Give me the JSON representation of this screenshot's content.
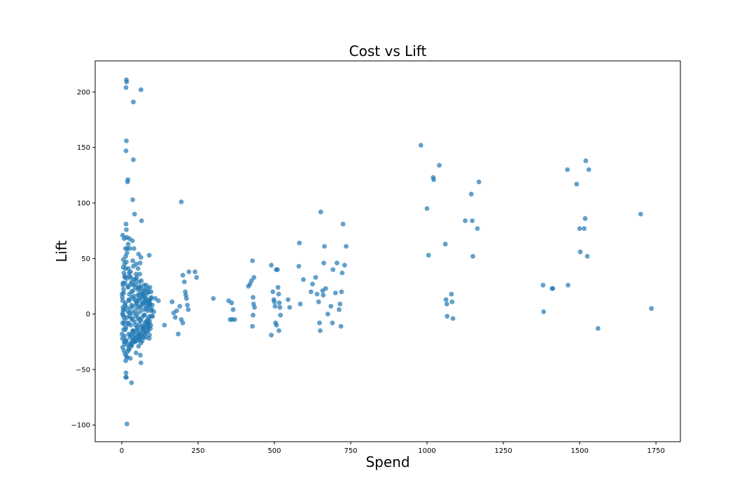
{
  "chart_data": {
    "type": "scatter",
    "title": "Cost vs Lift",
    "xlabel": "Spend",
    "ylabel": "Lift",
    "xlim": [
      -87,
      1830
    ],
    "ylim": [
      -115,
      228
    ],
    "xticks": [
      0,
      250,
      500,
      750,
      1000,
      1250,
      1500,
      1750
    ],
    "yticks": [
      -100,
      -50,
      0,
      50,
      100,
      150,
      200
    ],
    "ytick_labels": [
      "−100",
      "−50",
      "0",
      "50",
      "100",
      "150",
      "200"
    ],
    "grid": false,
    "color": "#1f77b4",
    "points": [
      [
        15,
        211
      ],
      [
        16,
        209
      ],
      [
        14,
        204
      ],
      [
        63,
        202
      ],
      [
        38,
        191
      ],
      [
        15,
        156
      ],
      [
        14,
        147
      ],
      [
        20,
        121
      ],
      [
        19,
        119
      ],
      [
        38,
        139
      ],
      [
        36,
        103
      ],
      [
        42,
        90
      ],
      [
        14,
        81
      ],
      [
        15,
        76
      ],
      [
        65,
        84
      ],
      [
        3,
        71
      ],
      [
        8,
        68
      ],
      [
        16,
        69
      ],
      [
        25,
        68
      ],
      [
        26,
        59
      ],
      [
        35,
        66
      ],
      [
        12,
        59
      ],
      [
        18,
        59
      ],
      [
        40,
        59
      ],
      [
        55,
        54
      ],
      [
        63,
        51
      ],
      [
        90,
        53
      ],
      [
        5,
        49
      ],
      [
        15,
        47
      ],
      [
        36,
        48
      ],
      [
        47,
        45
      ],
      [
        60,
        46
      ],
      [
        13,
        41
      ],
      [
        22,
        41
      ],
      [
        38,
        43
      ],
      [
        53,
        41
      ],
      [
        7,
        37
      ],
      [
        24,
        37
      ],
      [
        47,
        36
      ],
      [
        59,
        36
      ],
      [
        10,
        33
      ],
      [
        30,
        33
      ],
      [
        45,
        31
      ],
      [
        64,
        30
      ],
      [
        80,
        26
      ],
      [
        92,
        24
      ],
      [
        4,
        26
      ],
      [
        20,
        25
      ],
      [
        55,
        24
      ],
      [
        73,
        22
      ],
      [
        88,
        20
      ],
      [
        6,
        19
      ],
      [
        32,
        20
      ],
      [
        57,
        18
      ],
      [
        78,
        16
      ],
      [
        95,
        14
      ],
      [
        2,
        15
      ],
      [
        23,
        13
      ],
      [
        48,
        12
      ],
      [
        70,
        11
      ],
      [
        92,
        9
      ],
      [
        10,
        8
      ],
      [
        37,
        7
      ],
      [
        59,
        6
      ],
      [
        81,
        5
      ],
      [
        96,
        3
      ],
      [
        4,
        3
      ],
      [
        26,
        1
      ],
      [
        50,
        0
      ],
      [
        74,
        -1
      ],
      [
        91,
        -2
      ],
      [
        7,
        -3
      ],
      [
        33,
        -4
      ],
      [
        58,
        -5
      ],
      [
        83,
        -6
      ],
      [
        3,
        -8
      ],
      [
        21,
        -9
      ],
      [
        46,
        -10
      ],
      [
        69,
        -11
      ],
      [
        88,
        -12
      ],
      [
        12,
        -14
      ],
      [
        36,
        -15
      ],
      [
        60,
        -16
      ],
      [
        79,
        -17
      ],
      [
        1,
        -18
      ],
      [
        29,
        -19
      ],
      [
        54,
        -20
      ],
      [
        72,
        -21
      ],
      [
        90,
        -22
      ],
      [
        15,
        -24
      ],
      [
        42,
        -25
      ],
      [
        63,
        -26
      ],
      [
        9,
        -27
      ],
      [
        33,
        -28
      ],
      [
        55,
        -29
      ],
      [
        24,
        -32
      ],
      [
        47,
        -35
      ],
      [
        61,
        -37
      ],
      [
        18,
        -39
      ],
      [
        28,
        -40
      ],
      [
        13,
        -42
      ],
      [
        63,
        -44
      ],
      [
        14,
        -53
      ],
      [
        15,
        -57
      ],
      [
        13,
        -57
      ],
      [
        32,
        -62
      ],
      [
        17,
        -99
      ],
      [
        100,
        8
      ],
      [
        105,
        2
      ],
      [
        110,
        14
      ],
      [
        120,
        12
      ],
      [
        140,
        -10
      ],
      [
        165,
        11
      ],
      [
        170,
        1
      ],
      [
        175,
        -3
      ],
      [
        180,
        3
      ],
      [
        190,
        7
      ],
      [
        195,
        -5
      ],
      [
        200,
        -8
      ],
      [
        185,
        -18
      ],
      [
        195,
        101
      ],
      [
        200,
        35
      ],
      [
        205,
        29
      ],
      [
        208,
        20
      ],
      [
        210,
        17
      ],
      [
        212,
        14
      ],
      [
        215,
        8
      ],
      [
        218,
        4
      ],
      [
        220,
        38
      ],
      [
        240,
        38
      ],
      [
        245,
        33
      ],
      [
        300,
        14
      ],
      [
        350,
        12
      ],
      [
        360,
        10
      ],
      [
        365,
        4
      ],
      [
        355,
        -5
      ],
      [
        362,
        -5
      ],
      [
        370,
        -5
      ],
      [
        415,
        25
      ],
      [
        420,
        27
      ],
      [
        425,
        30
      ],
      [
        428,
        48
      ],
      [
        430,
        15
      ],
      [
        432,
        9
      ],
      [
        435,
        6
      ],
      [
        430,
        -1
      ],
      [
        428,
        -11
      ],
      [
        433,
        33
      ],
      [
        490,
        44
      ],
      [
        495,
        20
      ],
      [
        498,
        13
      ],
      [
        500,
        11
      ],
      [
        502,
        7
      ],
      [
        504,
        -8
      ],
      [
        507,
        -10
      ],
      [
        506,
        40
      ],
      [
        510,
        40
      ],
      [
        512,
        24
      ],
      [
        514,
        18
      ],
      [
        516,
        10
      ],
      [
        518,
        6
      ],
      [
        520,
        -1
      ],
      [
        515,
        -15
      ],
      [
        490,
        -19
      ],
      [
        545,
        13
      ],
      [
        550,
        6
      ],
      [
        580,
        43
      ],
      [
        582,
        64
      ],
      [
        585,
        9
      ],
      [
        595,
        31
      ],
      [
        620,
        20
      ],
      [
        625,
        27
      ],
      [
        635,
        33
      ],
      [
        640,
        18
      ],
      [
        645,
        11
      ],
      [
        648,
        -8
      ],
      [
        650,
        -15
      ],
      [
        652,
        92
      ],
      [
        658,
        21
      ],
      [
        660,
        17
      ],
      [
        662,
        46
      ],
      [
        664,
        61
      ],
      [
        668,
        23
      ],
      [
        675,
        0
      ],
      [
        685,
        7
      ],
      [
        690,
        -8
      ],
      [
        692,
        40
      ],
      [
        700,
        19
      ],
      [
        705,
        46
      ],
      [
        712,
        4
      ],
      [
        715,
        9
      ],
      [
        718,
        -11
      ],
      [
        720,
        20
      ],
      [
        722,
        37
      ],
      [
        725,
        81
      ],
      [
        730,
        44
      ],
      [
        735,
        61
      ],
      [
        980,
        152
      ],
      [
        1000,
        95
      ],
      [
        1005,
        53
      ],
      [
        1020,
        123
      ],
      [
        1022,
        121
      ],
      [
        1040,
        134
      ],
      [
        1060,
        63
      ],
      [
        1062,
        13
      ],
      [
        1065,
        9
      ],
      [
        1066,
        -2
      ],
      [
        1080,
        18
      ],
      [
        1082,
        11
      ],
      [
        1085,
        -4
      ],
      [
        1125,
        84
      ],
      [
        1145,
        108
      ],
      [
        1148,
        84
      ],
      [
        1150,
        52
      ],
      [
        1165,
        77
      ],
      [
        1170,
        119
      ],
      [
        1380,
        26
      ],
      [
        1382,
        2
      ],
      [
        1410,
        23
      ],
      [
        1412,
        23
      ],
      [
        1460,
        130
      ],
      [
        1462,
        26
      ],
      [
        1490,
        117
      ],
      [
        1500,
        77
      ],
      [
        1502,
        56
      ],
      [
        1515,
        77
      ],
      [
        1518,
        86
      ],
      [
        1520,
        138
      ],
      [
        1525,
        52
      ],
      [
        1530,
        130
      ],
      [
        1560,
        -13
      ],
      [
        1700,
        90
      ],
      [
        1735,
        5
      ],
      [
        5,
        -1
      ],
      [
        8,
        4
      ],
      [
        10,
        -6
      ],
      [
        12,
        10
      ],
      [
        14,
        -12
      ],
      [
        16,
        6
      ],
      [
        18,
        -3
      ],
      [
        20,
        2
      ],
      [
        22,
        -8
      ],
      [
        24,
        12
      ],
      [
        26,
        -2
      ],
      [
        28,
        5
      ],
      [
        30,
        -10
      ],
      [
        32,
        8
      ],
      [
        34,
        -5
      ],
      [
        36,
        1
      ],
      [
        38,
        -15
      ],
      [
        40,
        16
      ],
      [
        42,
        -7
      ],
      [
        44,
        3
      ],
      [
        46,
        -2
      ],
      [
        48,
        10
      ],
      [
        50,
        -12
      ],
      [
        52,
        6
      ],
      [
        54,
        -4
      ],
      [
        56,
        14
      ],
      [
        58,
        -9
      ],
      [
        60,
        2
      ],
      [
        62,
        -6
      ],
      [
        64,
        8
      ],
      [
        66,
        -3
      ],
      [
        68,
        18
      ],
      [
        70,
        -14
      ],
      [
        72,
        4
      ],
      [
        74,
        -1
      ],
      [
        76,
        11
      ],
      [
        78,
        -7
      ],
      [
        80,
        7
      ],
      [
        82,
        -11
      ],
      [
        84,
        3
      ],
      [
        86,
        -4
      ],
      [
        88,
        12
      ],
      [
        90,
        -8
      ],
      [
        92,
        6
      ],
      [
        94,
        -13
      ],
      [
        96,
        20
      ],
      [
        98,
        -2
      ],
      [
        6,
        22
      ],
      [
        9,
        -20
      ],
      [
        11,
        28
      ],
      [
        13,
        -24
      ],
      [
        17,
        32
      ],
      [
        19,
        -28
      ],
      [
        21,
        24
      ],
      [
        23,
        -18
      ],
      [
        25,
        18
      ],
      [
        27,
        -21
      ],
      [
        29,
        27
      ],
      [
        31,
        -26
      ],
      [
        33,
        15
      ],
      [
        35,
        -17
      ],
      [
        37,
        21
      ],
      [
        39,
        -23
      ],
      [
        41,
        13
      ],
      [
        43,
        -19
      ],
      [
        45,
        24
      ],
      [
        47,
        -16
      ],
      [
        49,
        9
      ],
      [
        51,
        -14
      ],
      [
        53,
        17
      ],
      [
        55,
        -22
      ],
      [
        57,
        12
      ],
      [
        59,
        -18
      ],
      [
        61,
        23
      ],
      [
        63,
        -12
      ],
      [
        65,
        15
      ],
      [
        67,
        -20
      ],
      [
        69,
        9
      ],
      [
        71,
        -16
      ],
      [
        73,
        18
      ],
      [
        75,
        -9
      ],
      [
        77,
        14
      ],
      [
        79,
        -21
      ],
      [
        81,
        10
      ],
      [
        83,
        -15
      ],
      [
        85,
        19
      ],
      [
        87,
        -10
      ],
      [
        89,
        8
      ],
      [
        91,
        -19
      ],
      [
        93,
        13
      ],
      [
        2,
        0
      ],
      [
        4,
        6
      ],
      [
        7,
        -9
      ],
      [
        3,
        12
      ],
      [
        6,
        -14
      ],
      [
        1,
        18
      ],
      [
        2,
        -22
      ],
      [
        4,
        28
      ],
      [
        8,
        -25
      ],
      [
        10,
        34
      ],
      [
        3,
        -30
      ],
      [
        5,
        42
      ],
      [
        7,
        -33
      ],
      [
        9,
        45
      ],
      [
        11,
        -36
      ],
      [
        13,
        52
      ],
      [
        15,
        -38
      ],
      [
        17,
        55
      ],
      [
        19,
        -34
      ],
      [
        21,
        63
      ],
      [
        23,
        -31
      ],
      [
        25,
        34
      ],
      [
        27,
        -27
      ],
      [
        29,
        38
      ],
      [
        31,
        -29
      ],
      [
        33,
        29
      ],
      [
        35,
        -24
      ],
      [
        37,
        26
      ],
      [
        39,
        -21
      ],
      [
        41,
        31
      ],
      [
        43,
        -25
      ],
      [
        45,
        27
      ],
      [
        47,
        -22
      ],
      [
        49,
        33
      ],
      [
        51,
        -24
      ],
      [
        53,
        22
      ],
      [
        55,
        -19
      ],
      [
        57,
        29
      ],
      [
        59,
        -23
      ],
      [
        61,
        25
      ],
      [
        63,
        -20
      ],
      [
        65,
        20
      ],
      [
        67,
        -24
      ],
      [
        69,
        16
      ],
      [
        71,
        -13
      ],
      [
        73,
        26
      ],
      [
        75,
        -18
      ],
      [
        77,
        21
      ],
      [
        79,
        -12
      ],
      [
        81,
        13
      ],
      [
        83,
        -8
      ],
      [
        85,
        23
      ],
      [
        87,
        -15
      ],
      [
        89,
        11
      ],
      [
        91,
        -6
      ],
      [
        93,
        9
      ],
      [
        95,
        -10
      ],
      [
        97,
        15
      ],
      [
        99,
        4
      ],
      [
        101,
        -2
      ]
    ]
  }
}
